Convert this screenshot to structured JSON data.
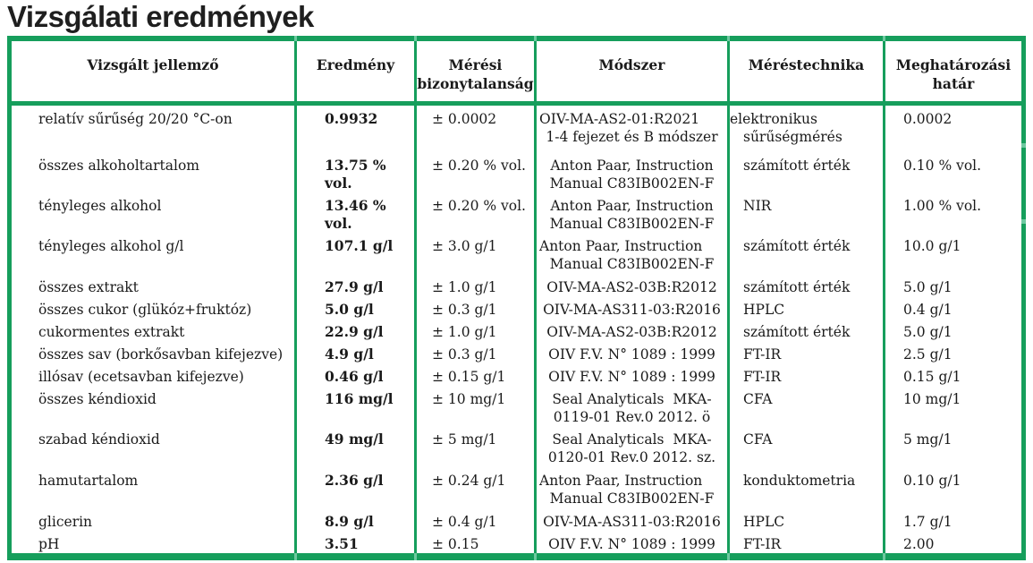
{
  "title": "Vizsgálati eredmények",
  "accent_color": "#169e5c",
  "table": {
    "headers": [
      "Vizsgált jellemző",
      "Eredmény",
      "Mérési bizonytalanság",
      "Módszer",
      "Méréstechnika",
      "Meghatározási határ"
    ],
    "rows": [
      {
        "property": "relatív sűrűség 20/20 °C-on",
        "result": "0.9932",
        "uncertainty": "± 0.0002",
        "method": [
          {
            "text": "OIV-MA-AS2-01:R2021",
            "align": "left"
          },
          {
            "text": "1-4 fejezet és B módszer",
            "align": "center"
          }
        ],
        "technique": [
          {
            "text": "elektronikus",
            "align": "flush"
          },
          {
            "text": "sűrűségmérés",
            "align": "indent"
          }
        ],
        "limit": "0.0002"
      },
      {
        "property": "összes alkoholtartalom",
        "result": "13.75 %\nvol.",
        "uncertainty": "± 0.20 % vol.",
        "method": [
          {
            "text": "Anton Paar, Instruction",
            "align": "center"
          },
          {
            "text": "Manual C83IB002EN-F",
            "align": "center"
          }
        ],
        "technique": [
          {
            "text": "számított érték",
            "align": "indent"
          }
        ],
        "limit": "0.10 % vol."
      },
      {
        "property": "tényleges alkohol",
        "result": "13.46 %\nvol.",
        "uncertainty": "± 0.20 % vol.",
        "method": [
          {
            "text": "Anton Paar, Instruction",
            "align": "center"
          },
          {
            "text": "Manual C83IB002EN-F",
            "align": "center"
          }
        ],
        "technique": [
          {
            "text": "NIR",
            "align": "indent"
          }
        ],
        "limit": "1.00 % vol."
      },
      {
        "property": "tényleges alkohol g/l",
        "result": "107.1 g/l",
        "uncertainty": "± 3.0 g/1",
        "method": [
          {
            "text": "Anton Paar, Instruction",
            "align": "left"
          },
          {
            "text": "Manual C83IB002EN-F",
            "align": "center"
          }
        ],
        "technique": [
          {
            "text": "számított érték",
            "align": "indent"
          }
        ],
        "limit": "10.0 g/1"
      },
      {
        "property": "összes extrakt",
        "result": "27.9 g/l",
        "uncertainty": "± 1.0 g/1",
        "method": [
          {
            "text": "OIV-MA-AS2-03B:R2012",
            "align": "center"
          }
        ],
        "technique": [
          {
            "text": "számított érték",
            "align": "indent"
          }
        ],
        "limit": "5.0 g/1"
      },
      {
        "property": "összes cukor (glükóz+fruktóz)",
        "result": "5.0 g/l",
        "uncertainty": "± 0.3 g/1",
        "method": [
          {
            "text": "OIV-MA-AS311-03:R2016",
            "align": "center"
          }
        ],
        "technique": [
          {
            "text": "HPLC",
            "align": "indent"
          }
        ],
        "limit": "0.4 g/1"
      },
      {
        "property": "cukormentes extrakt",
        "result": "22.9 g/l",
        "uncertainty": "± 1.0 g/1",
        "method": [
          {
            "text": "OIV-MA-AS2-03B:R2012",
            "align": "center"
          }
        ],
        "technique": [
          {
            "text": "számított érték",
            "align": "indent"
          }
        ],
        "limit": "5.0 g/1"
      },
      {
        "property": "összes sav (borkősavban kifejezve)",
        "result": "4.9 g/l",
        "uncertainty": "± 0.3 g/1",
        "method": [
          {
            "text": "OIV F.V. N° 1089 : 1999",
            "align": "center"
          }
        ],
        "technique": [
          {
            "text": "FT-IR",
            "align": "indent"
          }
        ],
        "limit": "2.5 g/1"
      },
      {
        "property": "illósav (ecetsavban kifejezve)",
        "result": "0.46 g/l",
        "uncertainty": "± 0.15 g/1",
        "method": [
          {
            "text": "OIV F.V. N° 1089 : 1999",
            "align": "center"
          }
        ],
        "technique": [
          {
            "text": "FT-IR",
            "align": "indent"
          }
        ],
        "limit": "0.15 g/1"
      },
      {
        "property": "összes kéndioxid",
        "result": "116 mg/l",
        "uncertainty": "± 10 mg/1",
        "method": [
          {
            "text": "Seal Analyticals  MKA-",
            "align": "center"
          },
          {
            "text": "0119-01 Rev.0 2012. ö",
            "align": "center"
          }
        ],
        "technique": [
          {
            "text": "CFA",
            "align": "indent"
          }
        ],
        "limit": "10 mg/1"
      },
      {
        "property": "szabad kéndioxid",
        "result": "49 mg/l",
        "uncertainty": "± 5 mg/1",
        "method": [
          {
            "text": "Seal Analyticals  MKA-",
            "align": "center"
          },
          {
            "text": "0120-01 Rev.0 2012. sz.",
            "align": "center"
          }
        ],
        "technique": [
          {
            "text": "CFA",
            "align": "indent"
          }
        ],
        "limit": "5 mg/1"
      },
      {
        "property": "hamutartalom",
        "result": "2.36 g/l",
        "uncertainty": "± 0.24 g/1",
        "method": [
          {
            "text": "Anton Paar, Instruction",
            "align": "left"
          },
          {
            "text": "Manual C83IB002EN-F",
            "align": "center"
          }
        ],
        "technique": [
          {
            "text": "konduktometria",
            "align": "indent"
          }
        ],
        "limit": "0.10 g/1"
      },
      {
        "property": "glicerin",
        "result": "8.9 g/l",
        "uncertainty": "± 0.4 g/1",
        "method": [
          {
            "text": "OIV-MA-AS311-03:R2016",
            "align": "center"
          }
        ],
        "technique": [
          {
            "text": "HPLC",
            "align": "indent"
          }
        ],
        "limit": "1.7 g/1"
      },
      {
        "property": "pH",
        "result": "3.51",
        "uncertainty": "± 0.15",
        "method": [
          {
            "text": "OIV F.V. N° 1089 : 1999",
            "align": "center"
          }
        ],
        "technique": [
          {
            "text": "FT-IR",
            "align": "indent"
          }
        ],
        "limit": "2.00"
      }
    ]
  }
}
